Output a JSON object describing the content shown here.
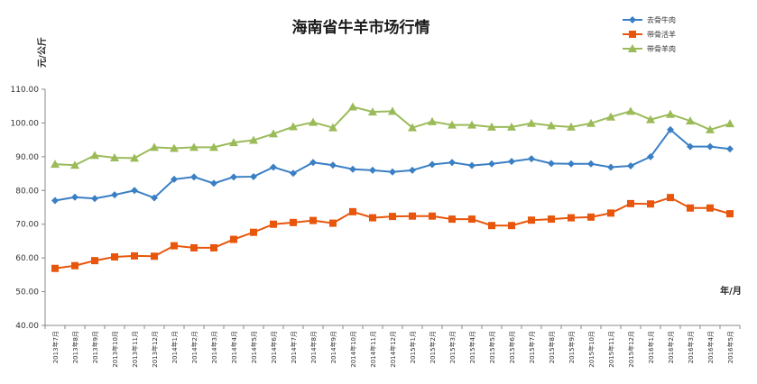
{
  "chart_data": {
    "type": "line",
    "title": "海南省牛羊市场行情",
    "ylabel": "元/公斤",
    "xlabel": "年/月",
    "ylim": [
      40,
      110
    ],
    "yticks": [
      "40.00",
      "50.00",
      "60.00",
      "70.00",
      "80.00",
      "90.00",
      "100.00",
      "110.00"
    ],
    "categories": [
      "2013年7月",
      "2013年8月",
      "2013年9月",
      "2013年10月",
      "2013年11月",
      "2013年12月",
      "2014年1月",
      "2014年2月",
      "2014年3月",
      "2014年4月",
      "2014年5月",
      "2014年6月",
      "2014年7月",
      "2014年8月",
      "2014年9月",
      "2014年10月",
      "2014年11月",
      "2014年12月",
      "2015年1月",
      "2015年2月",
      "2015年3月",
      "2015年4月",
      "2015年5月",
      "2015年6月",
      "2015年7月",
      "2015年8月",
      "2015年9月",
      "2015年10月",
      "2015年11月",
      "2015年12月",
      "2016年1月",
      "2016年2月",
      "2016年3月",
      "2016年4月",
      "2016年5月"
    ],
    "legend_position": "top-right",
    "grid": false,
    "series": [
      {
        "name": "去骨牛肉",
        "color": "#3a7fc4",
        "marker": "diamond",
        "values": [
          77.0,
          78.0,
          77.6,
          78.7,
          80.0,
          77.8,
          83.3,
          84.0,
          82.1,
          84.0,
          84.1,
          86.9,
          85.1,
          88.3,
          87.5,
          86.3,
          86.0,
          85.5,
          86.0,
          87.7,
          88.3,
          87.4,
          87.9,
          88.6,
          89.4,
          88.0,
          87.9,
          87.9,
          86.9,
          87.3,
          90.0,
          98.0,
          93.0,
          93.0,
          92.3
        ]
      },
      {
        "name": "带骨活羊",
        "color": "#e8560c",
        "marker": "square",
        "values": [
          56.9,
          57.7,
          59.2,
          60.3,
          60.6,
          60.5,
          63.6,
          63.0,
          63.0,
          65.5,
          67.6,
          70.0,
          70.5,
          71.1,
          70.3,
          73.7,
          71.9,
          72.3,
          72.4,
          72.4,
          71.5,
          71.5,
          69.6,
          69.6,
          71.2,
          71.5,
          71.9,
          72.1,
          73.3,
          76.1,
          76.0,
          77.9,
          74.8,
          74.8,
          73.1
        ]
      },
      {
        "name": "带骨羊肉",
        "color": "#9bbb59",
        "marker": "triangle",
        "values": [
          87.8,
          87.5,
          90.4,
          89.7,
          89.6,
          92.8,
          92.5,
          92.8,
          92.8,
          94.2,
          94.9,
          96.8,
          98.9,
          100.2,
          98.6,
          104.8,
          103.3,
          103.5,
          98.6,
          100.4,
          99.4,
          99.4,
          98.8,
          98.8,
          99.9,
          99.2,
          98.8,
          99.9,
          101.8,
          103.5,
          101.0,
          102.6,
          100.6,
          98.0,
          99.8
        ]
      }
    ]
  }
}
